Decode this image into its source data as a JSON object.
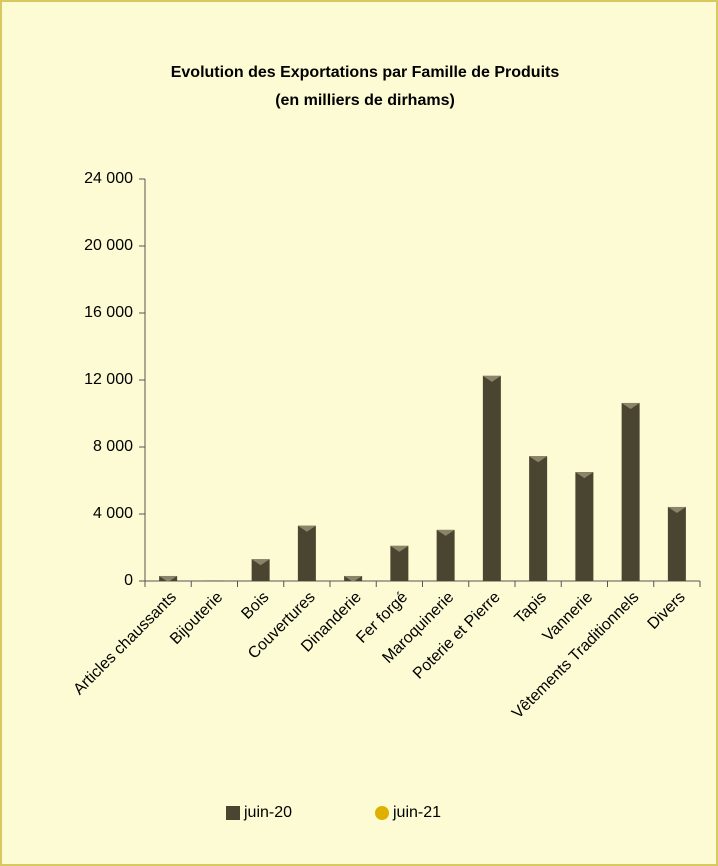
{
  "chart_data": {
    "type": "bar",
    "title": "Evolution des Exportations  par Famille de Produits",
    "subtitle": "(en milliers de dirhams)",
    "categories": [
      "Articles chaussants",
      "Bijouterie",
      "Bois",
      "Couvertures",
      "Dinanderie",
      "Fer forgé",
      "Maroquinerie",
      "Poterie et Pierre",
      "Tapis",
      "Vannerie",
      "Vêtements Traditionnels",
      "Divers"
    ],
    "series": [
      {
        "name": "juin-20",
        "color": "#4a4530",
        "values": [
          300,
          30,
          1300,
          3300,
          300,
          2100,
          3050,
          12250,
          7450,
          6500,
          10630,
          4420
        ]
      },
      {
        "name": "juin-21",
        "color": "#e0b000",
        "values": [
          null,
          null,
          null,
          null,
          null,
          null,
          null,
          null,
          null,
          null,
          null,
          null
        ]
      }
    ],
    "ylim": [
      0,
      24000
    ],
    "yticks": [
      {
        "value": 0,
        "label": "0"
      },
      {
        "value": 4000,
        "label": "4 000"
      },
      {
        "value": 8000,
        "label": "8 000"
      },
      {
        "value": 12000,
        "label": "12 000"
      },
      {
        "value": 16000,
        "label": "16 000"
      },
      {
        "value": 20000,
        "label": "20 000"
      },
      {
        "value": 24000,
        "label": "24 000"
      }
    ],
    "legend": "bottom"
  }
}
